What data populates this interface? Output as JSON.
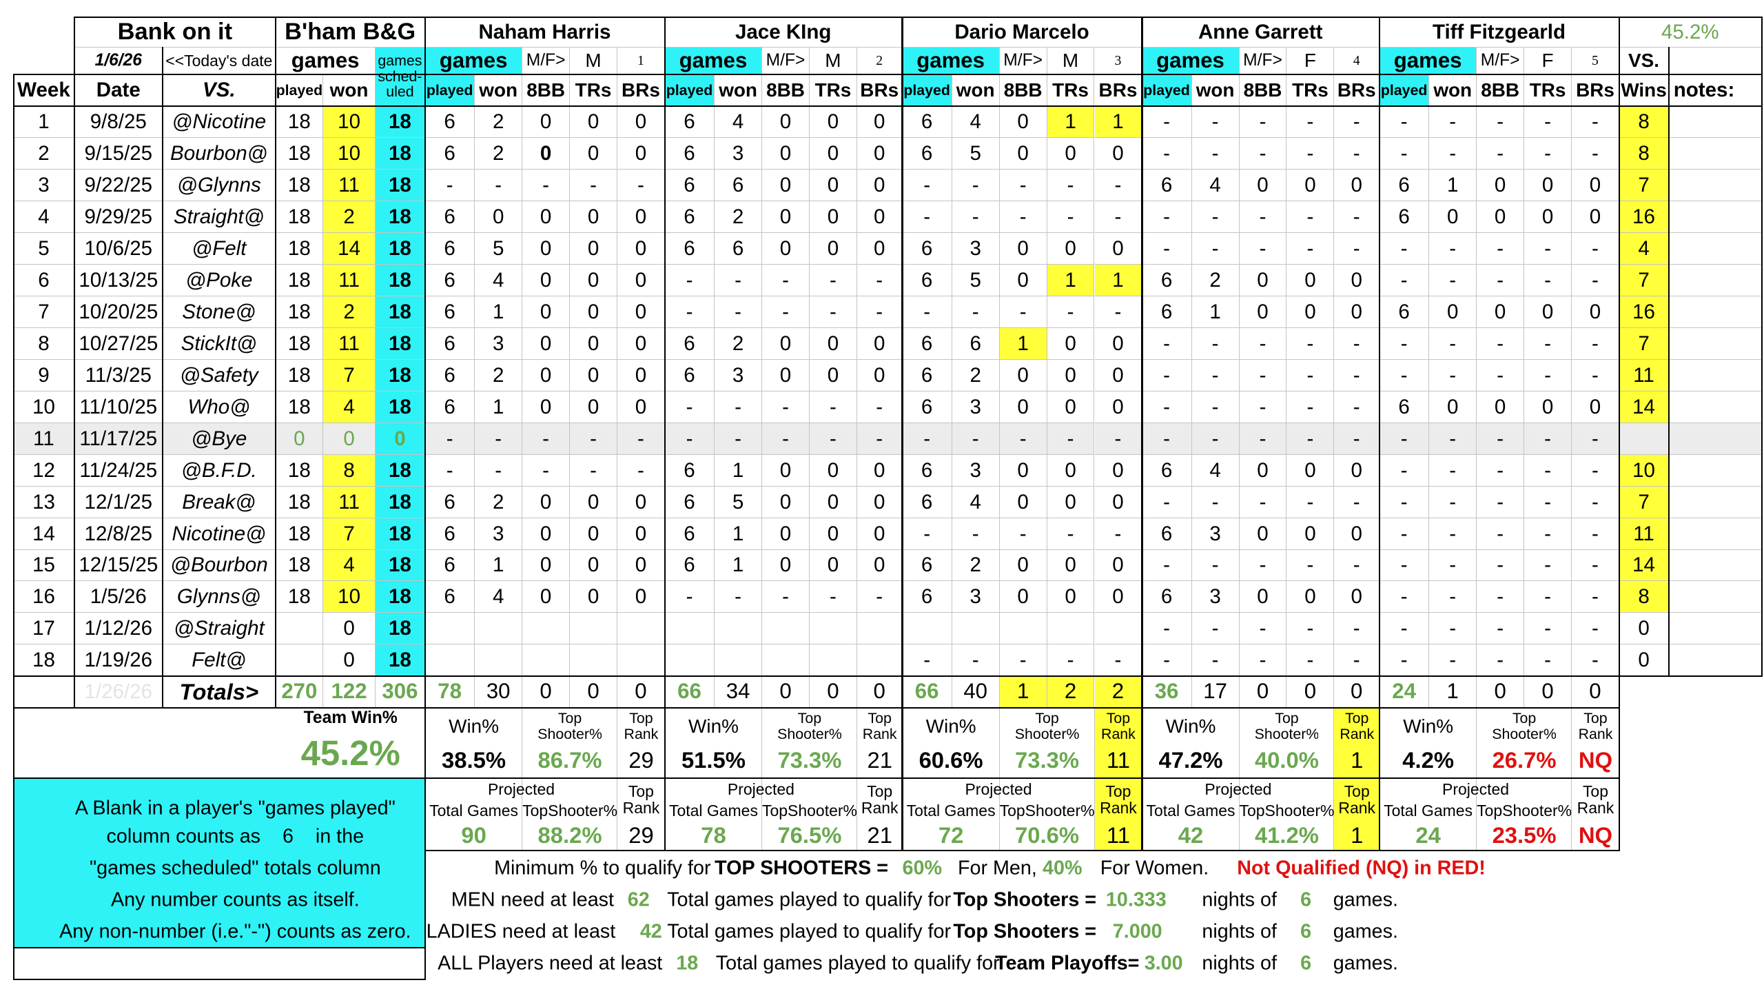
{
  "header": {
    "title": "Bank on it",
    "team": "B'ham B&G",
    "win_pct": "45.2%",
    "date": "1/6/26",
    "date_note": "<<Today's date",
    "games": "games",
    "scheduled": "games sched-uled",
    "week": "Week",
    "date_col": "Date",
    "vs": "VS.",
    "played": "played",
    "won": "won",
    "vs_wins_top": "VS.",
    "vs_wins": "Wins",
    "notes": "notes:"
  },
  "players": [
    {
      "name": "Naham Harris",
      "games": "games",
      "mf_label": "M/F>",
      "mf": "M",
      "num": "1",
      "columns": [
        "played",
        "won",
        "8BB",
        "TRs",
        "BRs"
      ],
      "totals": [
        "78",
        "30",
        "0",
        "0",
        "0"
      ],
      "stats": {
        "win_label": "Win%",
        "win": "38.5%",
        "shooter_label": "Top Shooter%",
        "shooter": "86.7%",
        "rank_label": "Top Rank",
        "rank": "29"
      },
      "projected": {
        "label": "Projected",
        "games_label": "Total Games",
        "games": "90",
        "shooter_label": "TopShooter%",
        "shooter": "88.2%",
        "rank_label": "Top Rank",
        "rank": "29"
      }
    },
    {
      "name": "Jace KIng",
      "games": "games",
      "mf_label": "M/F>",
      "mf": "M",
      "num": "2",
      "columns": [
        "played",
        "won",
        "8BB",
        "TRs",
        "BRs"
      ],
      "totals": [
        "66",
        "34",
        "0",
        "0",
        "0"
      ],
      "stats": {
        "win_label": "Win%",
        "win": "51.5%",
        "shooter_label": "Top Shooter%",
        "shooter": "73.3%",
        "rank_label": "Top Rank",
        "rank": "21"
      },
      "projected": {
        "label": "Projected",
        "games_label": "Total Games",
        "games": "78",
        "shooter_label": "TopShooter%",
        "shooter": "76.5%",
        "rank_label": "Top Rank",
        "rank": "21"
      }
    },
    {
      "name": "Dario Marcelo",
      "games": "games",
      "mf_label": "M/F>",
      "mf": "M",
      "num": "3",
      "columns": [
        "played",
        "won",
        "8BB",
        "TRs",
        "BRs"
      ],
      "totals": [
        "66",
        "40",
        "1",
        "2",
        "2"
      ],
      "stats": {
        "win_label": "Win%",
        "win": "60.6%",
        "shooter_label": "Top Shooter%",
        "shooter": "73.3%",
        "rank_label": "Top Rank",
        "rank": "11"
      },
      "projected": {
        "label": "Projected",
        "games_label": "Total Games",
        "games": "72",
        "shooter_label": "TopShooter%",
        "shooter": "70.6%",
        "rank_label": "Top Rank",
        "rank": "11"
      }
    },
    {
      "name": "Anne Garrett",
      "games": "games",
      "mf_label": "M/F>",
      "mf": "F",
      "num": "4",
      "columns": [
        "played",
        "won",
        "8BB",
        "TRs",
        "BRs"
      ],
      "totals": [
        "36",
        "17",
        "0",
        "0",
        "0"
      ],
      "stats": {
        "win_label": "Win%",
        "win": "47.2%",
        "shooter_label": "Top Shooter%",
        "shooter": "40.0%",
        "rank_label": "Top Rank",
        "rank": "1"
      },
      "projected": {
        "label": "Projected",
        "games_label": "Total Games",
        "games": "42",
        "shooter_label": "TopShooter%",
        "shooter": "41.2%",
        "rank_label": "Top Rank",
        "rank": "1"
      }
    },
    {
      "name": "Tiff Fitzgearld",
      "games": "games",
      "mf_label": "M/F>",
      "mf": "F",
      "num": "5",
      "columns": [
        "played",
        "won",
        "8BB",
        "TRs",
        "BRs"
      ],
      "totals": [
        "24",
        "1",
        "0",
        "0",
        "0"
      ],
      "stats": {
        "win_label": "Win%",
        "win": "4.2%",
        "shooter_label": "Top Shooter%",
        "shooter": "26.7%",
        "rank_label": "Top Rank",
        "rank": "NQ"
      },
      "projected": {
        "label": "Projected",
        "games_label": "Total Games",
        "games": "24",
        "shooter_label": "TopShooter%",
        "shooter": "23.5%",
        "rank_label": "Top Rank",
        "rank": "NQ"
      }
    }
  ],
  "weeks": [
    {
      "week": "1",
      "date": "9/8/25",
      "vs": "@Nicotine",
      "played": "18",
      "won": "10",
      "scheduled": "18",
      "vs_wins": "8",
      "players": [
        [
          "6",
          "2",
          "0",
          "0",
          "0"
        ],
        [
          "6",
          "4",
          "0",
          "0",
          "0"
        ],
        [
          "6",
          "4",
          "0",
          "1",
          "1"
        ],
        [
          "-",
          "-",
          "-",
          "-",
          "-"
        ],
        [
          "-",
          "-",
          "-",
          "-",
          "-"
        ]
      ]
    },
    {
      "week": "2",
      "date": "9/15/25",
      "vs": "Bourbon@",
      "played": "18",
      "won": "10",
      "scheduled": "18",
      "vs_wins": "8",
      "players": [
        [
          "6",
          "2",
          "0",
          "0",
          "0"
        ],
        [
          "6",
          "3",
          "0",
          "0",
          "0"
        ],
        [
          "6",
          "5",
          "0",
          "0",
          "0"
        ],
        [
          "-",
          "-",
          "-",
          "-",
          "-"
        ],
        [
          "-",
          "-",
          "-",
          "-",
          "-"
        ]
      ]
    },
    {
      "week": "3",
      "date": "9/22/25",
      "vs": "@Glynns",
      "played": "18",
      "won": "11",
      "scheduled": "18",
      "vs_wins": "7",
      "players": [
        [
          "-",
          "-",
          "-",
          "-",
          "-"
        ],
        [
          "6",
          "6",
          "0",
          "0",
          "0"
        ],
        [
          "-",
          "-",
          "-",
          "-",
          "-"
        ],
        [
          "6",
          "4",
          "0",
          "0",
          "0"
        ],
        [
          "6",
          "1",
          "0",
          "0",
          "0"
        ]
      ]
    },
    {
      "week": "4",
      "date": "9/29/25",
      "vs": "Straight@",
      "played": "18",
      "won": "2",
      "scheduled": "18",
      "vs_wins": "16",
      "players": [
        [
          "6",
          "0",
          "0",
          "0",
          "0"
        ],
        [
          "6",
          "2",
          "0",
          "0",
          "0"
        ],
        [
          "-",
          "-",
          "-",
          "-",
          "-"
        ],
        [
          "-",
          "-",
          "-",
          "-",
          "-"
        ],
        [
          "6",
          "0",
          "0",
          "0",
          "0"
        ]
      ]
    },
    {
      "week": "5",
      "date": "10/6/25",
      "vs": "@Felt",
      "played": "18",
      "won": "14",
      "scheduled": "18",
      "vs_wins": "4",
      "players": [
        [
          "6",
          "5",
          "0",
          "0",
          "0"
        ],
        [
          "6",
          "6",
          "0",
          "0",
          "0"
        ],
        [
          "6",
          "3",
          "0",
          "0",
          "0"
        ],
        [
          "-",
          "-",
          "-",
          "-",
          "-"
        ],
        [
          "-",
          "-",
          "-",
          "-",
          "-"
        ]
      ]
    },
    {
      "week": "6",
      "date": "10/13/25",
      "vs": "@Poke",
      "played": "18",
      "won": "11",
      "scheduled": "18",
      "vs_wins": "7",
      "players": [
        [
          "6",
          "4",
          "0",
          "0",
          "0"
        ],
        [
          "-",
          "-",
          "-",
          "-",
          "-"
        ],
        [
          "6",
          "5",
          "0",
          "1",
          "1"
        ],
        [
          "6",
          "2",
          "0",
          "0",
          "0"
        ],
        [
          "-",
          "-",
          "-",
          "-",
          "-"
        ]
      ]
    },
    {
      "week": "7",
      "date": "10/20/25",
      "vs": "Stone@",
      "played": "18",
      "won": "2",
      "scheduled": "18",
      "vs_wins": "16",
      "players": [
        [
          "6",
          "1",
          "0",
          "0",
          "0"
        ],
        [
          "-",
          "-",
          "-",
          "-",
          "-"
        ],
        [
          "-",
          "-",
          "-",
          "-",
          "-"
        ],
        [
          "6",
          "1",
          "0",
          "0",
          "0"
        ],
        [
          "6",
          "0",
          "0",
          "0",
          "0"
        ]
      ]
    },
    {
      "week": "8",
      "date": "10/27/25",
      "vs": "StickIt@",
      "played": "18",
      "won": "11",
      "scheduled": "18",
      "vs_wins": "7",
      "players": [
        [
          "6",
          "3",
          "0",
          "0",
          "0"
        ],
        [
          "6",
          "2",
          "0",
          "0",
          "0"
        ],
        [
          "6",
          "6",
          "1",
          "0",
          "0"
        ],
        [
          "-",
          "-",
          "-",
          "-",
          "-"
        ],
        [
          "-",
          "-",
          "-",
          "-",
          "-"
        ]
      ]
    },
    {
      "week": "9",
      "date": "11/3/25",
      "vs": "@Safety",
      "played": "18",
      "won": "7",
      "scheduled": "18",
      "vs_wins": "11",
      "players": [
        [
          "6",
          "2",
          "0",
          "0",
          "0"
        ],
        [
          "6",
          "3",
          "0",
          "0",
          "0"
        ],
        [
          "6",
          "2",
          "0",
          "0",
          "0"
        ],
        [
          "-",
          "-",
          "-",
          "-",
          "-"
        ],
        [
          "-",
          "-",
          "-",
          "-",
          "-"
        ]
      ]
    },
    {
      "week": "10",
      "date": "11/10/25",
      "vs": "Who@",
      "played": "18",
      "won": "4",
      "scheduled": "18",
      "vs_wins": "14",
      "players": [
        [
          "6",
          "1",
          "0",
          "0",
          "0"
        ],
        [
          "-",
          "-",
          "-",
          "-",
          "-"
        ],
        [
          "6",
          "3",
          "0",
          "0",
          "0"
        ],
        [
          "-",
          "-",
          "-",
          "-",
          "-"
        ],
        [
          "6",
          "0",
          "0",
          "0",
          "0"
        ]
      ]
    },
    {
      "week": "11",
      "date": "11/17/25",
      "vs": "@Bye",
      "played": "0",
      "won": "0",
      "scheduled": "0",
      "vs_wins": null,
      "players": [
        [
          "-",
          "-",
          "-",
          "-",
          "-"
        ],
        [
          "-",
          "-",
          "-",
          "-",
          "-"
        ],
        [
          "-",
          "-",
          "-",
          "-",
          "-"
        ],
        [
          "-",
          "-",
          "-",
          "-",
          "-"
        ],
        [
          "-",
          "-",
          "-",
          "-",
          "-"
        ]
      ]
    },
    {
      "week": "12",
      "date": "11/24/25",
      "vs": "@B.F.D.",
      "played": "18",
      "won": "8",
      "scheduled": "18",
      "vs_wins": "10",
      "players": [
        [
          "-",
          "-",
          "-",
          "-",
          "-"
        ],
        [
          "6",
          "1",
          "0",
          "0",
          "0"
        ],
        [
          "6",
          "3",
          "0",
          "0",
          "0"
        ],
        [
          "6",
          "4",
          "0",
          "0",
          "0"
        ],
        [
          "-",
          "-",
          "-",
          "-",
          "-"
        ]
      ]
    },
    {
      "week": "13",
      "date": "12/1/25",
      "vs": "Break@",
      "played": "18",
      "won": "11",
      "scheduled": "18",
      "vs_wins": "7",
      "players": [
        [
          "6",
          "2",
          "0",
          "0",
          "0"
        ],
        [
          "6",
          "5",
          "0",
          "0",
          "0"
        ],
        [
          "6",
          "4",
          "0",
          "0",
          "0"
        ],
        [
          "-",
          "-",
          "-",
          "-",
          "-"
        ],
        [
          "-",
          "-",
          "-",
          "-",
          "-"
        ]
      ]
    },
    {
      "week": "14",
      "date": "12/8/25",
      "vs": "Nicotine@",
      "played": "18",
      "won": "7",
      "scheduled": "18",
      "vs_wins": "11",
      "players": [
        [
          "6",
          "3",
          "0",
          "0",
          "0"
        ],
        [
          "6",
          "1",
          "0",
          "0",
          "0"
        ],
        [
          "-",
          "-",
          "-",
          "-",
          "-"
        ],
        [
          "6",
          "3",
          "0",
          "0",
          "0"
        ],
        [
          "-",
          "-",
          "-",
          "-",
          "-"
        ]
      ]
    },
    {
      "week": "15",
      "date": "12/15/25",
      "vs": "@Bourbon",
      "played": "18",
      "won": "4",
      "scheduled": "18",
      "vs_wins": "14",
      "players": [
        [
          "6",
          "1",
          "0",
          "0",
          "0"
        ],
        [
          "6",
          "1",
          "0",
          "0",
          "0"
        ],
        [
          "6",
          "2",
          "0",
          "0",
          "0"
        ],
        [
          "-",
          "-",
          "-",
          "-",
          "-"
        ],
        [
          "-",
          "-",
          "-",
          "-",
          "-"
        ]
      ]
    },
    {
      "week": "16",
      "date": "1/5/26",
      "vs": "Glynns@",
      "played": "18",
      "won": "10",
      "scheduled": "18",
      "vs_wins": "8",
      "players": [
        [
          "6",
          "4",
          "0",
          "0",
          "0"
        ],
        [
          "-",
          "-",
          "-",
          "-",
          "-"
        ],
        [
          "6",
          "3",
          "0",
          "0",
          "0"
        ],
        [
          "6",
          "3",
          "0",
          "0",
          "0"
        ],
        [
          "-",
          "-",
          "-",
          "-",
          "-"
        ]
      ]
    },
    {
      "week": "17",
      "date": "1/12/26",
      "vs": "@Straight",
      "played": null,
      "won": "0",
      "scheduled": "18",
      "vs_wins": "0",
      "players": [
        null,
        null,
        null,
        [
          "-",
          "-",
          "-",
          "-",
          "-"
        ],
        [
          "-",
          "-",
          "-",
          "-",
          "-"
        ]
      ]
    },
    {
      "week": "18",
      "date": "1/19/26",
      "vs": "Felt@",
      "played": null,
      "won": "0",
      "scheduled": "18",
      "vs_wins": "0",
      "players": [
        null,
        null,
        [
          "-",
          "-",
          "-",
          "-",
          "-"
        ],
        [
          "-",
          "-",
          "-",
          "-",
          "-"
        ],
        [
          "-",
          "-",
          "-",
          "-",
          "-"
        ]
      ]
    }
  ],
  "totals": {
    "date": "1/26/26",
    "label": "Totals>",
    "played": "270",
    "won": "122",
    "scheduled": "306"
  },
  "team": {
    "label": "Team Win%",
    "value": "45.2%"
  },
  "notes_box": {
    "lines": [
      "A Blank in a player's \"games played\"",
      "column counts as    6    in the",
      "\"games scheduled\" totals column",
      "Any number counts as itself.",
      "Any non-number (i.e.\"-\") counts as zero."
    ]
  },
  "rules": [
    [
      "Minimum % to qualify for",
      "TOP SHOOTERS =",
      "60%",
      "For Men,",
      "40%",
      "For Women.",
      "Not Qualified (NQ) in RED!"
    ],
    [
      "MEN need at least",
      "62",
      "Total games played to qualify for",
      "Top Shooters =",
      "10.333",
      "nights of",
      "6",
      "games."
    ],
    [
      "LADIES need at least",
      "42",
      "Total games played to qualify for",
      "Top Shooters =",
      "7.000",
      "nights of",
      "6",
      "games."
    ],
    [
      "ALL Players need at least",
      "18",
      "Total games played to qualify for",
      "Team Playoffs=",
      "3.00",
      "nights of",
      "6",
      "games."
    ]
  ]
}
